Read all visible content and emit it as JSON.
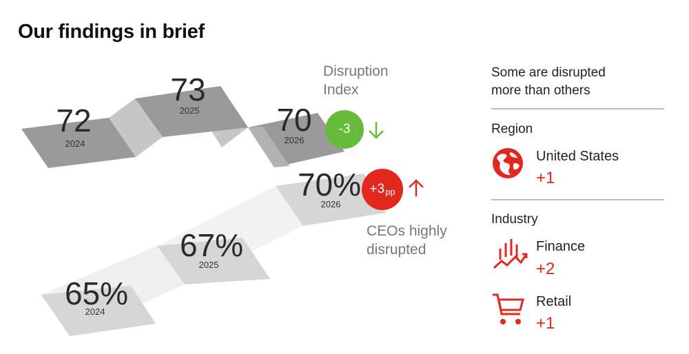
{
  "title": "Our findings in brief",
  "disruption_index": {
    "label_line1": "Disruption",
    "label_line2": "Index",
    "values": [
      {
        "value": "72",
        "year": "2024"
      },
      {
        "value": "73",
        "year": "2025"
      },
      {
        "value": "70",
        "year": "2026"
      }
    ],
    "change": "-3"
  },
  "ceos_disrupted": {
    "label_line1": "CEOs highly",
    "label_line2": "disrupted",
    "values": [
      {
        "value": "65%",
        "year": "2024"
      },
      {
        "value": "67%",
        "year": "2025"
      },
      {
        "value": "70%",
        "year": "2026"
      }
    ],
    "change_main": "+3",
    "change_unit": "pp"
  },
  "right_panel": {
    "heading_line1": "Some are disrupted",
    "heading_line2": "more than others",
    "region": {
      "heading": "Region",
      "items": [
        {
          "label": "United States",
          "value": "+1",
          "icon": "globe-icon"
        }
      ]
    },
    "industry": {
      "heading": "Industry",
      "items": [
        {
          "label": "Finance",
          "value": "+2",
          "icon": "finance-chart-icon"
        },
        {
          "label": "Retail",
          "value": "+1",
          "icon": "shopping-cart-icon"
        }
      ]
    }
  },
  "colors": {
    "accent_red": "#e2281c",
    "accent_green": "#67bb3b",
    "ribbon_dark": "#9a9a9a",
    "ribbon_light": "#d6d6d6"
  }
}
